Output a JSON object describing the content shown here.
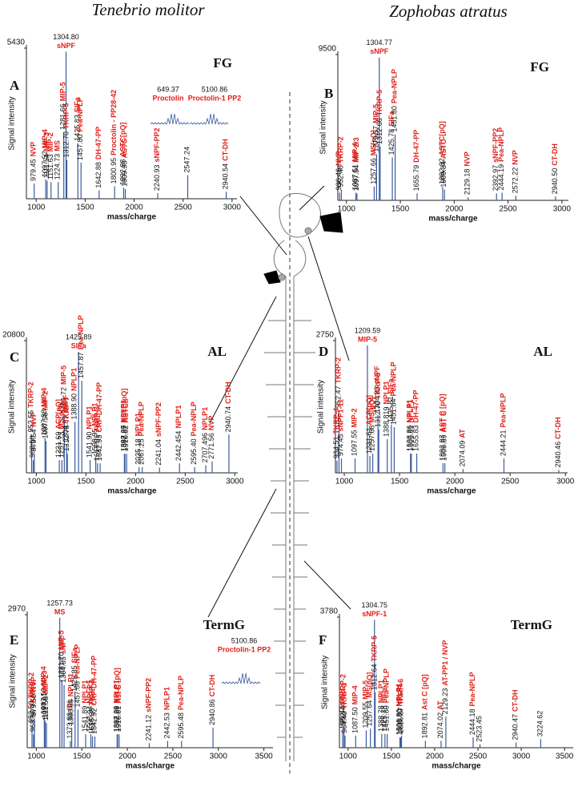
{
  "headers": [
    "Tenebrio molitor",
    "Zophobas atratus"
  ],
  "chart_data": [
    {
      "type": "spectrum",
      "label": "A",
      "tag": "FG",
      "xlabel": "mass/charge",
      "ylabel": "Signal intensity",
      "xlim": [
        900,
        3050
      ],
      "xticks": [
        1000,
        1500,
        2000,
        2500,
        3000
      ],
      "ylim": [
        0,
        5430
      ],
      "yticks": [
        5430
      ],
      "color": "#3b5b9c",
      "label_color": "#e0201a",
      "x": [
        979.45,
        1097.52,
        1111.54,
        1151.63,
        1224.73,
        1281.66,
        1304.8,
        1312.7,
        1425.82,
        1457.8,
        1642.88,
        1800.95,
        1892.88,
        1909.93,
        2240.93,
        2547.24,
        2940.54
      ],
      "x_labels": [
        "979.45",
        "1097.52",
        "1111.54",
        "1151.63",
        "1224.73",
        "1281.66",
        "1304.80",
        "1312.70",
        "1425.82",
        "1457.80",
        "1642.88",
        "1800.95",
        "1892.88",
        "1909.93",
        "2240.93",
        "2547.24",
        "2940.54"
      ],
      "values": [
        550,
        700,
        650,
        600,
        600,
        2400,
        5300,
        1400,
        2000,
        1300,
        300,
        450,
        400,
        350,
        200,
        850,
        250
      ],
      "names": [
        "NVP",
        "MIP-4",
        "MIP-3",
        "MIP-2",
        "MS",
        "MIP-5",
        "sNPF",
        "TKRP-5",
        "SIFa",
        "Pea-NPLP",
        "DH-47-PP",
        "Proctolin - PP28-42",
        "ASTC[pQ]",
        "ASTC",
        "sNPF-PP2",
        null,
        "CT-DH"
      ],
      "insets": [
        {
          "mz": "649.37",
          "name": "Proctolin"
        },
        {
          "mz": "5100.86",
          "name": "Proctolin-1 PP2"
        }
      ]
    },
    {
      "type": "spectrum",
      "label": "B",
      "tag": "FG",
      "xlabel": "mass/charge",
      "ylabel": "Signal intensity",
      "xlim": [
        920,
        3060
      ],
      "xticks": [
        1000,
        1500,
        2000,
        2500,
        3000
      ],
      "ylim": [
        0,
        9500
      ],
      "yticks": [
        9500
      ],
      "color": "#3b5b9c",
      "label_color": "#e0201a",
      "x": [
        936.46,
        952.48,
        1087.51,
        1097.54,
        1257.66,
        1279.57,
        1304.77,
        1312.66,
        1425.78,
        1451.8,
        1655.79,
        1892.82,
        1909.84,
        2129.18,
        2392.97,
        2444.19,
        2572.22,
        2940.5
      ],
      "x_labels": [
        "936.46",
        "952.48",
        "1087.51",
        "1097.54",
        "1257.66",
        "1279.57",
        "1304.77",
        "1312.66",
        "1425.78",
        "1451.80",
        "1655.79",
        "1892.82",
        "1909.84",
        "2129.18",
        "2392.97",
        "2444.19",
        "2572.22",
        "2940.50"
      ],
      "values": [
        500,
        700,
        500,
        450,
        900,
        3000,
        9300,
        3500,
        2800,
        4300,
        450,
        900,
        700,
        200,
        450,
        500,
        300,
        250
      ],
      "names": [
        "NVP",
        "TKRP-2",
        "MIP-4",
        "MIP-2/3",
        "MS[pQ]",
        "MIP-5",
        "sNPF",
        "TKRP-5",
        "SIFa",
        "Pea-NPLP",
        "DH-47-PP",
        "ASTC[pQ]",
        "ASTC",
        "NVP",
        "sNPF-PP2",
        "Pea-NPLP",
        "NVP",
        "CT-DH"
      ]
    },
    {
      "type": "spectrum",
      "label": "C",
      "tag": "AL",
      "xlabel": "mass/charge",
      "ylabel": "Signal intensity",
      "xlim": [
        900,
        3030
      ],
      "xticks": [
        1000,
        1500,
        2000,
        2500,
        3000
      ],
      "ylim": [
        0,
        20800
      ],
      "yticks": [
        20800
      ],
      "color": "#3b5b9c",
      "label_color": "#e0201a",
      "x": [
        952.55,
        968.58,
        979.54,
        1087.58,
        1097.56,
        1231.69,
        1257.73,
        1281.72,
        1304.87,
        1312.78,
        1388.9,
        1425.89,
        1457.87,
        1541.9,
        1598.95,
        1617.01,
        1642.93,
        1887.27,
        1892.99,
        1910.02,
        2035.18,
        2067.25,
        2241.04,
        2442.454,
        2595.4,
        2707.496,
        2771.56,
        2940.74
      ],
      "x_labels": [
        "952.55",
        "968.58",
        "979.54",
        "1087.58",
        "1097.56",
        "1231.69",
        "1257.73",
        "1281.72",
        "1304.87",
        "1312.78",
        "1388.90",
        "1425.89",
        "1457.87",
        "1541.90",
        "1598.95",
        "1617.01",
        "1642.93",
        "1887.27",
        "1892.99",
        "1910.02",
        "2035.18",
        "2067.25",
        "2241.04",
        "2442.454",
        "2595.40",
        "2707.496",
        "2771.56",
        "2940.74"
      ],
      "values": [
        6000,
        2000,
        3000,
        5500,
        5000,
        2000,
        2000,
        9000,
        4500,
        3000,
        8000,
        19000,
        14500,
        2000,
        2500,
        1500,
        1500,
        3000,
        3000,
        3000,
        900,
        900,
        800,
        1500,
        900,
        1200,
        1800,
        6000
      ],
      "names": [
        "TKRP-2",
        null,
        "NVP",
        "MIP-4",
        "MIP-2",
        "ACP[pQ]",
        "MS[pQ]",
        "MIP-5",
        "sNPF",
        "TKRP-7",
        "NPLP1",
        "SIFa",
        "Pea-NPLP",
        "NPLP1",
        "NPLP1",
        "TKRP-3",
        "CRF-DH-47-PP",
        "NPLP1",
        "ASTC[pQ]",
        "ASTC",
        "NPLP1",
        "Pea-NPLP",
        "sNPF-PP2",
        "NPLP1",
        "Pea-NPLP",
        "NPLP1",
        "NVP",
        "CT-DH"
      ]
    },
    {
      "type": "spectrum",
      "label": "D",
      "tag": "AL",
      "xlabel": "mass/charge",
      "ylabel": "Signal intensity",
      "xlim": [
        920,
        3020
      ],
      "xticks": [
        1000,
        1500,
        2000,
        2500,
        3000
      ],
      "ylim": [
        0,
        2750
      ],
      "yticks": [
        2750
      ],
      "color": "#3b5b9c",
      "label_color": "#e0201a",
      "x": [
        934.51,
        952.47,
        974.45,
        1097.55,
        1209.59,
        1231.61,
        1257.68,
        1304.8,
        1312.7,
        1388.819,
        1425.81,
        1451.84,
        1598.86,
        1606.81,
        1655.83,
        1892.87,
        1909.89,
        2074.09,
        2444.21,
        2940.46
      ],
      "x_labels": [
        "934.51",
        "952.47",
        "974.45",
        "1097.55",
        "1209.59",
        "1231.61",
        "1257.68",
        "1304.80",
        "1312.70",
        "1388.819",
        "1425.81",
        "1451.84",
        "1598.86",
        "1606.81",
        "1655.83",
        "1892.87",
        "1909.89",
        "2074.09",
        "2444.21",
        "2940.46"
      ],
      "values": [
        250,
        1300,
        300,
        300,
        2650,
        350,
        400,
        1200,
        900,
        700,
        1000,
        950,
        400,
        400,
        400,
        200,
        200,
        80,
        300,
        60
      ],
      "names": [
        "TKRP-4",
        "TKRP-2",
        "sNPF1-11",
        "MIP-2",
        "MIP-5",
        "ACP[pQ]",
        "MS[pQ]",
        "sNPF",
        "TKRP-5",
        "NPLP1",
        "SIFa",
        "Pea-NPLP",
        "NPLP1",
        "NPLP1",
        "DH-47-PP",
        "AST C [pQ]",
        "AST C",
        "AT",
        "Pea-NPLP",
        "CT-DH"
      ]
    },
    {
      "type": "spectrum",
      "label": "E",
      "tag": "TermG",
      "xlabel": "mass/charge",
      "ylabel": "Signal intensity",
      "xlim": [
        900,
        3600
      ],
      "xticks": [
        1000,
        1500,
        2000,
        2500,
        3000,
        3500
      ],
      "ylim": [
        0,
        2970
      ],
      "yticks": [
        2970
      ],
      "color": "#3b5b9c",
      "label_color": "#e0201a",
      "x": [
        952.5,
        968.53,
        979.5,
        1087.56,
        1097.61,
        1111.58,
        1257.73,
        1281.7,
        1304.85,
        1373.83,
        1388.88,
        1425.85,
        1457.86,
        1541.89,
        1598.94,
        1616.98,
        1642.92,
        1887.28,
        1892.99,
        1910.01,
        2241.12,
        2442.53,
        2595.48,
        2940.86
      ],
      "x_labels": [
        "952.50",
        "968.53",
        "979.50",
        "1087.56",
        "1097.61",
        "1111.58",
        "1257.73",
        "1281.70",
        "1304.85",
        "1373.83",
        "1388.88",
        "1425.85",
        "1457.86",
        "1541.89",
        "1598.94",
        "1616.98",
        "1642.92",
        "1887.28",
        "1892.99",
        "1910.01",
        "2241.12",
        "2442.53",
        "2595.48",
        "2940.86"
      ],
      "values": [
        500,
        300,
        650,
        700,
        600,
        550,
        2900,
        1500,
        1400,
        150,
        450,
        1200,
        850,
        300,
        300,
        250,
        250,
        300,
        300,
        300,
        100,
        150,
        150,
        450
      ],
      "names": [
        "TKRP-2",
        "TKRP-6",
        "NVP",
        "MIP-4",
        "MIP-3",
        "MIP-2",
        "MS",
        "MIP-5",
        "sNPF",
        "IDL",
        "NPLP1",
        "SIFa",
        "Pea-NPLP",
        "NPLP1",
        "NPLP1",
        "TKRP-3",
        "CRF-DH-47-PP",
        "NPLP1",
        "Ast C [pQ]",
        "Ast C",
        "sNPF-PP2",
        "NPLP1",
        "Pea-NPLP",
        "CT-DH"
      ],
      "insets": [
        {
          "mz": "5100.86",
          "name": "Proctolin-1 PP2"
        }
      ]
    },
    {
      "type": "spectrum",
      "label": "F",
      "tag": "TermG",
      "xlabel": "mass/charge",
      "ylabel": "Signal intensity",
      "xlim": [
        900,
        3600
      ],
      "xticks": [
        1000,
        1500,
        2000,
        2500,
        3000,
        3500
      ],
      "ylim": [
        0,
        3780
      ],
      "yticks": [
        3780
      ],
      "color": "#3b5b9c",
      "label_color": "#e0201a",
      "x": [
        936.43,
        952.44,
        964.49,
        1087.5,
        1209.55,
        1257.64,
        1304.75,
        1312.64,
        1388.78,
        1425.78,
        1451.8,
        1598.8,
        1606.8,
        1616.87,
        1892.81,
        2074.02,
        2129.23,
        2444.18,
        2523.45,
        2940.47,
        3224.62
      ],
      "x_labels": [
        "936.43",
        "952.44",
        "964.49",
        "1087.50",
        "1209.55",
        "1257.64",
        "1304.75",
        "1312.64",
        "1388.78",
        "1425.78",
        "1451.80",
        "1598.80",
        "1606.80",
        "1616.87",
        "1892.81",
        "2074.02",
        "2129.23",
        "2444.18",
        "2523.45",
        "2940.47",
        "3224.62"
      ],
      "values": [
        500,
        600,
        350,
        350,
        500,
        550,
        3700,
        1600,
        400,
        400,
        400,
        300,
        300,
        350,
        200,
        200,
        900,
        300,
        100,
        150,
        250
      ],
      "names": [
        "NVP",
        "TKRP-2",
        "TKRP-3",
        "MIP-4",
        "MIP-5",
        "MS[pQ]",
        "sNPF-1",
        "TKRP-5",
        "NPLP1",
        "SIFa",
        "Pea-NPLP",
        "NPLP1",
        "NPLP1",
        "TKRP-6",
        "Ast C [pQ]",
        "AT",
        "AT-PP1 / NVP",
        "Pea-NPLP",
        null,
        "CT-DH",
        null
      ]
    }
  ]
}
